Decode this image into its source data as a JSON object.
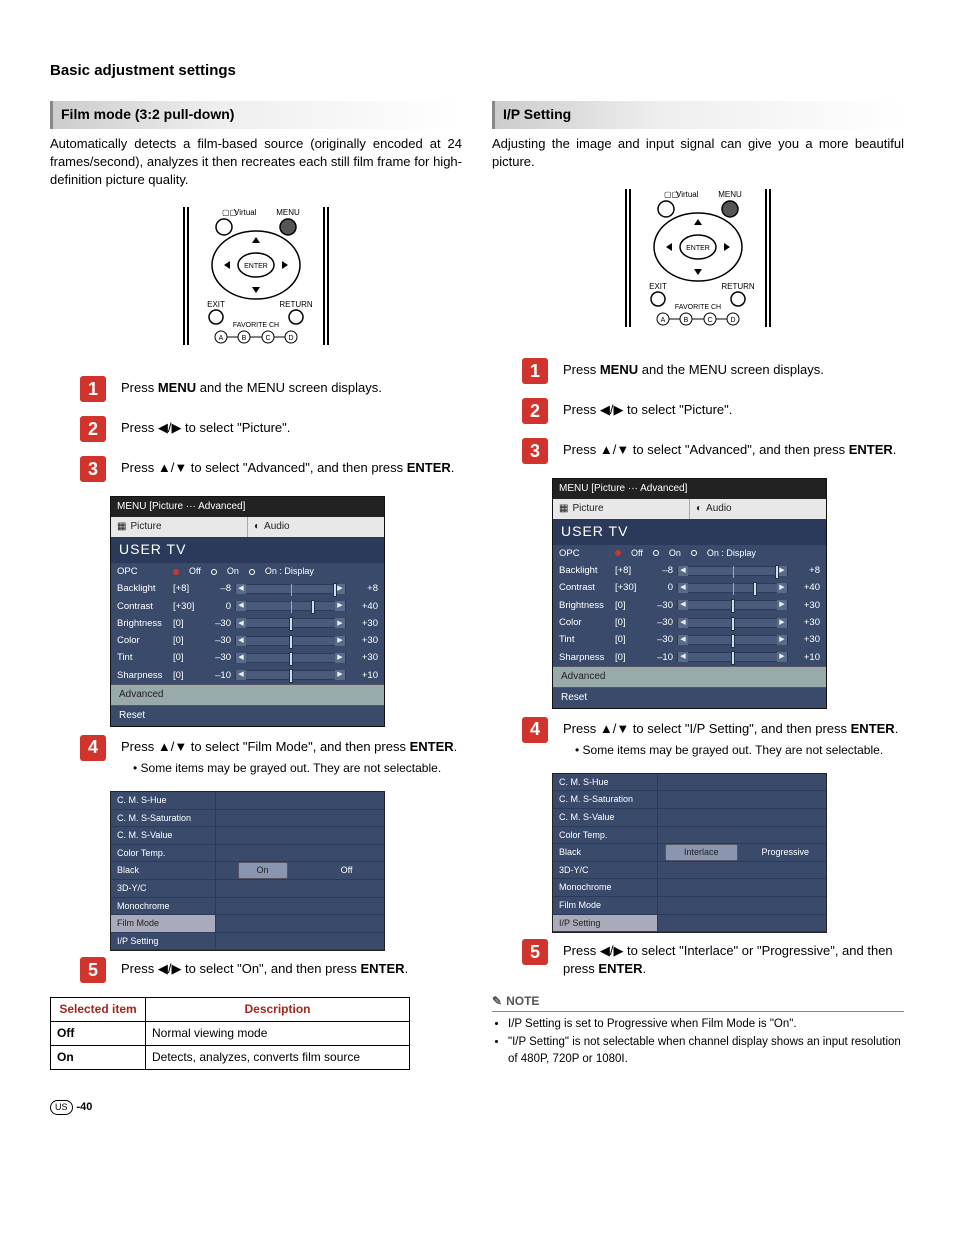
{
  "page_title": "Basic adjustment settings",
  "page_number": "-40",
  "region_badge": "US",
  "left": {
    "header": "Film mode (3:2 pull-down)",
    "intro": "Automatically detects a film-based source (originally encoded at 24 frames/second), analyzes it then recreates each still film frame for high-definition picture quality.",
    "steps": {
      "s1": {
        "num": "1",
        "pre": "Press ",
        "b1": "MENU",
        "post": " and the MENU screen displays."
      },
      "s2": {
        "num": "2",
        "text": "Press ◀/▶ to select \"Picture\"."
      },
      "s3": {
        "num": "3",
        "text": "Press ▲/▼ to select \"Advanced\", and then press ",
        "b1": "ENTER",
        "post": "."
      },
      "s4": {
        "num": "4",
        "text": "Press ▲/▼ to select \"Film Mode\", and then press ",
        "b1": "ENTER",
        "post": ".",
        "bullet": "Some items may be grayed out. They are not selectable."
      },
      "s5": {
        "num": "5",
        "text": "Press ◀/▶ to select \"On\", and then press ",
        "b1": "ENTER",
        "post": "."
      }
    },
    "submenu": {
      "items": [
        "C. M. S-Hue",
        "C. M. S-Saturation",
        "C. M. S-Value",
        "Color Temp.",
        "Black",
        "3D-Y/C",
        "Monochrome",
        "Film Mode",
        "I/P Setting"
      ],
      "highlight": "Film Mode",
      "opt_row": "Black",
      "opts": [
        "On",
        "Off"
      ],
      "selected_opt": "On"
    },
    "desc_table": {
      "h1": "Selected item",
      "h2": "Description",
      "rows": [
        {
          "k": "Off",
          "v": "Normal viewing mode"
        },
        {
          "k": "On",
          "v": "Detects, analyzes, converts film source"
        }
      ]
    }
  },
  "right": {
    "header": "I/P Setting",
    "intro": "Adjusting the image and input signal can give you a more beautiful picture.",
    "steps": {
      "s1": {
        "num": "1",
        "pre": "Press ",
        "b1": "MENU",
        "post": " and the MENU screen displays."
      },
      "s2": {
        "num": "2",
        "text": "Press ◀/▶ to select \"Picture\"."
      },
      "s3": {
        "num": "3",
        "text": "Press ▲/▼ to select \"Advanced\", and then press ",
        "b1": "ENTER",
        "post": "."
      },
      "s4": {
        "num": "4",
        "text": "Press ▲/▼ to select \"I/P Setting\", and then press ",
        "b1": "ENTER",
        "post": ".",
        "bullet": "Some items may be grayed out. They are not selectable."
      },
      "s5": {
        "num": "5",
        "text": "Press ◀/▶ to select \"Interlace\" or \"Progressive\", and then press ",
        "b1": "ENTER",
        "post": "."
      }
    },
    "submenu": {
      "items": [
        "C. M. S-Hue",
        "C. M. S-Saturation",
        "C. M. S-Value",
        "Color Temp.",
        "Black",
        "3D-Y/C",
        "Monochrome",
        "Film Mode",
        "I/P Setting"
      ],
      "highlight": "I/P Setting",
      "opt_row": "Black",
      "opts": [
        "Interlace",
        "Progressive"
      ],
      "selected_opt": "Interlace"
    },
    "notes": [
      "I/P Setting is set to Progressive when Film Mode is \"On\".",
      "\"I/P Setting\" is not selectable when channel display shows an input resolution of 480P, 720P or 1080I."
    ]
  },
  "osd": {
    "top": "MENU    [Picture ··· Advanced]",
    "tabs": [
      "Picture",
      "Audio"
    ],
    "brand": "USER TV",
    "opc": {
      "label": "OPC",
      "opts": [
        "Off",
        "On",
        "On : Display"
      ],
      "selected": "Off"
    },
    "rows": [
      {
        "label": "Backlight",
        "cur": "[+8]",
        "min": "–8",
        "max": "+8",
        "thumb": 100
      },
      {
        "label": "Contrast",
        "cur": "[+30]",
        "min": "0",
        "max": "+40",
        "thumb": 75
      },
      {
        "label": "Brightness",
        "cur": "[0]",
        "min": "–30",
        "max": "+30",
        "thumb": 50
      },
      {
        "label": "Color",
        "cur": "[0]",
        "min": "–30",
        "max": "+30",
        "thumb": 50
      },
      {
        "label": "Tint",
        "cur": "[0]",
        "min": "–30",
        "max": "+30",
        "thumb": 50
      },
      {
        "label": "Sharpness",
        "cur": "[0]",
        "min": "–10",
        "max": "+10",
        "thumb": 50
      }
    ],
    "foot": [
      "Advanced",
      "Reset"
    ]
  },
  "remote": {
    "virtual": "Virtual",
    "menu": "MENU",
    "enter": "ENTER",
    "exit": "EXIT",
    "return": "RETURN",
    "fav": "FAVORITE CH",
    "btns": [
      "A",
      "B",
      "C",
      "D"
    ]
  },
  "note_label": "NOTE"
}
